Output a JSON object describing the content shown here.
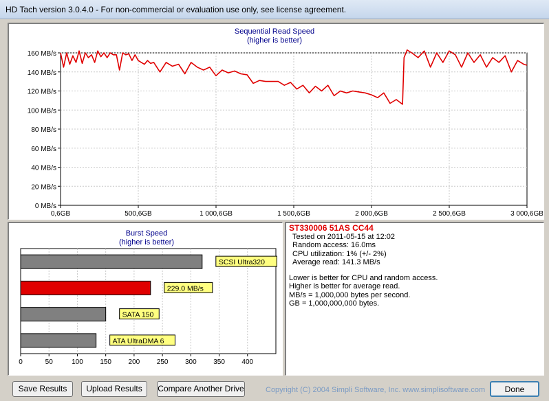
{
  "window": {
    "title": "HD Tach version 3.0.4.0  - For non-commercial or evaluation use only, see license agreement."
  },
  "seq_chart": {
    "title": "Sequential Read Speed",
    "subtitle": "(higher is better)"
  },
  "burst_chart": {
    "title": "Burst Speed",
    "subtitle": "(higher is better)"
  },
  "results": {
    "drive": "ST330006 51AS CC44",
    "tested_on": "Tested on 2011-05-15 at 12:02",
    "random_access": "Random access: 16.0ms",
    "cpu": "CPU utilization: 1% (+/- 2%)",
    "avg_read": "Average read: 141.3 MB/s",
    "note1": "Lower is better for CPU and random access.",
    "note2": "Higher is better for average read.",
    "note3": "MB/s = 1,000,000 bytes per second.",
    "note4": "GB = 1,000,000,000 bytes."
  },
  "buttons": {
    "save": "Save Results",
    "upload": "Upload Results",
    "compare": "Compare Another Drive",
    "done": "Done"
  },
  "copyright": "Copyright (C) 2004 Simpli Software, Inc. www.simplisoftware.com",
  "colors": {
    "series": "#e00000",
    "bar_gray": "#808080",
    "label_bg": "#ffff80"
  },
  "chart_data": [
    {
      "type": "line",
      "title": "Sequential Read Speed",
      "subtitle": "(higher is better)",
      "xlabel": "",
      "ylabel": "",
      "x_ticks": [
        "0,6GB",
        "500,6GB",
        "1 000,6GB",
        "1 500,6GB",
        "2 000,6GB",
        "2 500,6GB",
        "3 000,6GB"
      ],
      "y_ticks": [
        "0 MB/s",
        "20 MB/s",
        "40 MB/s",
        "60 MB/s",
        "80 MB/s",
        "100 MB/s",
        "120 MB/s",
        "140 MB/s",
        "160 MB/s"
      ],
      "xlim": [
        0.6,
        3000.6
      ],
      "ylim": [
        0,
        160
      ],
      "grid": true,
      "series": [
        {
          "x": [
            0.6,
            20,
            40,
            60,
            80,
            100,
            120,
            140,
            160,
            180,
            200,
            220,
            240,
            260,
            280,
            300,
            320,
            340,
            360,
            380,
            400,
            420,
            440,
            460,
            480,
            500,
            520,
            540,
            560,
            580,
            600,
            640,
            680,
            720,
            760,
            800,
            840,
            880,
            920,
            960,
            1000,
            1040,
            1080,
            1120,
            1160,
            1200,
            1240,
            1280,
            1320,
            1360,
            1400,
            1440,
            1480,
            1520,
            1560,
            1600,
            1640,
            1680,
            1720,
            1760,
            1800,
            1840,
            1880,
            1920,
            1960,
            2000,
            2040,
            2080,
            2120,
            2160,
            2200,
            2210,
            2230,
            2260,
            2300,
            2340,
            2380,
            2420,
            2460,
            2500,
            2540,
            2580,
            2620,
            2660,
            2700,
            2740,
            2780,
            2820,
            2860,
            2900,
            2940,
            2980,
            3000.6
          ],
          "y": [
            160,
            145,
            160,
            148,
            157,
            150,
            162,
            149,
            160,
            155,
            158,
            150,
            162,
            156,
            160,
            155,
            160,
            158,
            158,
            142,
            160,
            158,
            159,
            152,
            158,
            152,
            150,
            148,
            152,
            149,
            150,
            140,
            150,
            146,
            148,
            138,
            150,
            145,
            142,
            145,
            136,
            142,
            139,
            141,
            138,
            137,
            128,
            131,
            130,
            130,
            130,
            126,
            129,
            122,
            126,
            118,
            125,
            120,
            126,
            115,
            120,
            118,
            120,
            119,
            118,
            116,
            113,
            118,
            107,
            111,
            106,
            155,
            163,
            160,
            155,
            162,
            145,
            160,
            150,
            162,
            158,
            145,
            160,
            150,
            158,
            145,
            155,
            150,
            157,
            140,
            152,
            148,
            147
          ]
        }
      ]
    },
    {
      "type": "bar",
      "title": "Burst Speed",
      "subtitle": "(higher is better)",
      "orientation": "horizontal",
      "xlim": [
        0,
        450
      ],
      "x_ticks": [
        "0",
        "50",
        "100",
        "150",
        "200",
        "250",
        "300",
        "350",
        "400"
      ],
      "categories": [
        "SCSI Ultra320",
        "229.0 MB/s",
        "SATA 150",
        "ATA UltraDMA 6"
      ],
      "values": [
        320,
        229,
        150,
        133
      ],
      "highlight_index": 1
    }
  ]
}
